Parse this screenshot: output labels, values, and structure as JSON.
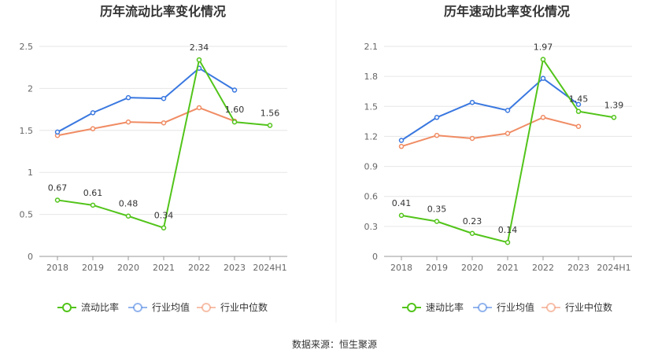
{
  "source": "数据来源：恒生聚源",
  "chart_data": [
    {
      "type": "line",
      "title": "历年流动比率变化情况",
      "categories": [
        "2018",
        "2019",
        "2020",
        "2021",
        "2022",
        "2023",
        "2024H1"
      ],
      "ylim": [
        0,
        2.5
      ],
      "yticks": [
        "0",
        "0.5",
        "1",
        "1.5",
        "2",
        "2.5"
      ],
      "series": [
        {
          "name": "流动比率",
          "color": "#52c41a",
          "values": [
            0.67,
            0.61,
            0.48,
            0.34,
            2.34,
            1.6,
            1.56
          ],
          "labels": [
            "0.67",
            "0.61",
            "0.48",
            "0.34",
            "2.34",
            "1.60",
            "1.56"
          ]
        },
        {
          "name": "行业均值",
          "color": "#3a78e0",
          "values": [
            1.48,
            1.71,
            1.89,
            1.88,
            2.24,
            1.98,
            null
          ]
        },
        {
          "name": "行业中位数",
          "color": "#f08c64",
          "values": [
            1.44,
            1.52,
            1.6,
            1.59,
            1.77,
            1.61,
            null
          ]
        }
      ]
    },
    {
      "type": "line",
      "title": "历年速动比率变化情况",
      "categories": [
        "2018",
        "2019",
        "2020",
        "2021",
        "2022",
        "2023",
        "2024H1"
      ],
      "ylim": [
        0,
        2.1
      ],
      "yticks": [
        "0",
        "0.3",
        "0.6",
        "0.9",
        "1.2",
        "1.5",
        "1.8",
        "2.1"
      ],
      "series": [
        {
          "name": "速动比率",
          "color": "#52c41a",
          "values": [
            0.41,
            0.35,
            0.23,
            0.14,
            1.97,
            1.45,
            1.39
          ],
          "labels": [
            "0.41",
            "0.35",
            "0.23",
            "0.14",
            "1.97",
            "1.45",
            "1.39"
          ]
        },
        {
          "name": "行业均值",
          "color": "#3a78e0",
          "values": [
            1.16,
            1.39,
            1.54,
            1.46,
            1.78,
            1.52,
            null
          ]
        },
        {
          "name": "行业中位数",
          "color": "#f08c64",
          "values": [
            1.1,
            1.21,
            1.18,
            1.23,
            1.39,
            1.3,
            null
          ]
        }
      ]
    }
  ]
}
